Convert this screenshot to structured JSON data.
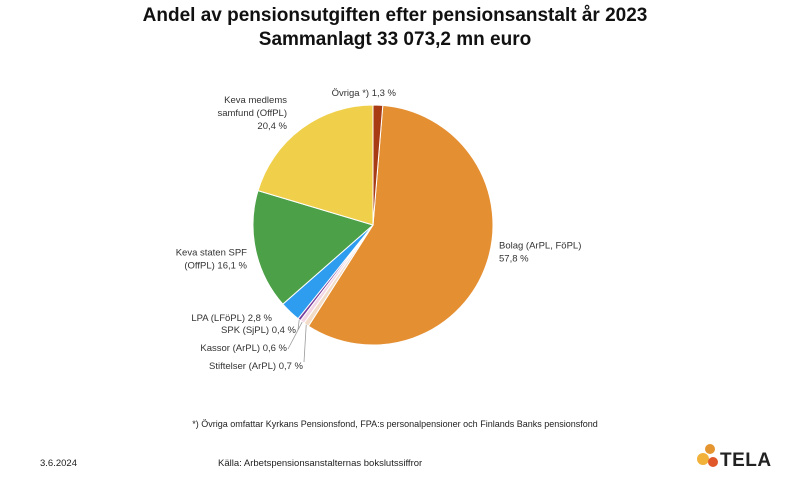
{
  "header": {
    "title": "Andel av pensionsutgiften efter pensionsanstalt år 2023",
    "subtitle": "Sammanlagt 33 073,2 mn euro"
  },
  "chart_data": {
    "type": "pie",
    "title": "Andel av pensionsutgiften efter pensionsanstalt år 2023",
    "subtitle": "Sammanlagt 33 073,2 mn euro",
    "unit": "%",
    "slices": [
      {
        "name": "Bolag (ArPL, FöPL)",
        "value": 57.8,
        "label_lines": [
          "Bolag (ArPL, FöPL)",
          "57,8 %"
        ],
        "color": "#E58F33"
      },
      {
        "name": "Stiftelser (ArPL)",
        "value": 0.7,
        "label_lines": [
          "Stiftelser (ArPL) 0,7 %"
        ],
        "color": "#F2DCC8"
      },
      {
        "name": "Kassor (ArPL)",
        "value": 0.6,
        "label_lines": [
          "Kassor (ArPL) 0,6 %"
        ],
        "color": "#F3D6E4"
      },
      {
        "name": "SPK (SjPL)",
        "value": 0.4,
        "label_lines": [
          "SPK (SjPL) 0,4 %"
        ],
        "color": "#7B3F9E"
      },
      {
        "name": "LPA (LFöPL)",
        "value": 2.8,
        "label_lines": [
          "LPA (LFöPL) 2,8 %"
        ],
        "color": "#2E9DF0"
      },
      {
        "name": "Keva staten SPF (OffPL)",
        "value": 16.1,
        "label_lines": [
          "Keva staten SPF",
          "(OffPL) 16,1 %"
        ],
        "color": "#4CA047"
      },
      {
        "name": "Keva medlemssamfund (OffPL)",
        "value": 20.4,
        "label_lines": [
          "Keva medlems",
          "samfund (OffPL)",
          "20,4 %"
        ],
        "color": "#F0D04A"
      },
      {
        "name": "Övriga *)",
        "value": 1.3,
        "label_lines": [
          "Övriga *) 1,3 %"
        ],
        "color": "#A83A14"
      }
    ]
  },
  "footnote": "*) Övriga omfattar Kyrkans Pensionsfond, FPA:s personalpensioner och Finlands Banks pensionsfond",
  "footer": {
    "date": "3.6.2024",
    "source": "Källa: Arbetspensionsanstalternas bokslutssiffror",
    "logo_text": "TELA",
    "logo_colors": [
      "#E5952F",
      "#F2B23A",
      "#E0582A"
    ]
  }
}
